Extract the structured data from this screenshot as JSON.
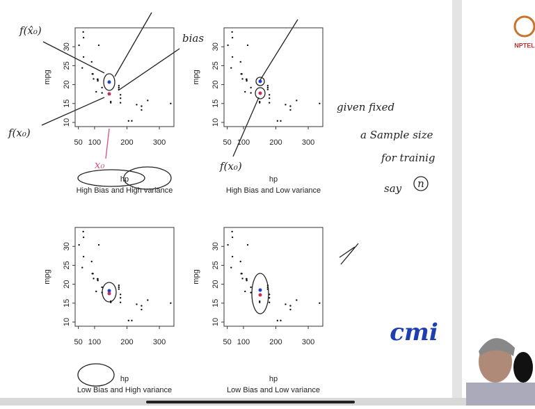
{
  "chart_data": [
    {
      "type": "scatter",
      "x_label": "hp",
      "y_label": "mpg",
      "subtitle": "High Bias and High variance",
      "x": [
        110,
        110,
        93,
        110,
        175,
        105,
        245,
        62,
        95,
        123,
        123,
        180,
        180,
        180,
        205,
        215,
        230,
        66,
        52,
        65,
        97,
        150,
        150,
        245,
        175,
        66,
        91,
        113,
        264,
        175,
        335,
        109
      ],
      "y": [
        21,
        21,
        22.8,
        21.4,
        18.7,
        18.1,
        14.3,
        24.4,
        22.8,
        19.2,
        17.8,
        16.4,
        17.3,
        15.2,
        10.4,
        10.4,
        14.7,
        32.4,
        30.4,
        33.9,
        21.5,
        15.5,
        15.2,
        13.3,
        19.2,
        27.3,
        26,
        30.4,
        15.8,
        19.7,
        15,
        21.4
      ],
      "color": "#111111",
      "xlim": [
        40,
        345
      ],
      "ylim": [
        8.9,
        35
      ],
      "xticks": [
        50,
        100,
        200,
        300
      ],
      "yticks": [
        10,
        15,
        20,
        25,
        30
      ]
    },
    {
      "type": "scatter",
      "x_label": "hp",
      "y_label": "mpg",
      "subtitle": "High Bias and Low variance",
      "x": [
        110,
        110,
        93,
        110,
        175,
        105,
        245,
        62,
        95,
        123,
        123,
        180,
        180,
        180,
        205,
        215,
        230,
        66,
        52,
        65,
        97,
        150,
        150,
        245,
        175,
        66,
        91,
        113,
        264,
        175,
        335,
        109
      ],
      "y": [
        21,
        21,
        22.8,
        21.4,
        18.7,
        18.1,
        14.3,
        24.4,
        22.8,
        19.2,
        17.8,
        16.4,
        17.3,
        15.2,
        10.4,
        10.4,
        14.7,
        32.4,
        30.4,
        33.9,
        21.5,
        15.5,
        15.2,
        13.3,
        19.2,
        27.3,
        26,
        30.4,
        15.8,
        19.7,
        15,
        21.4
      ],
      "color": "#111111",
      "xlim": [
        40,
        345
      ],
      "ylim": [
        8.9,
        35
      ],
      "xticks": [
        50,
        100,
        200,
        300
      ],
      "yticks": [
        10,
        15,
        20,
        25,
        30
      ]
    },
    {
      "type": "scatter",
      "x_label": "hp",
      "y_label": "mpg",
      "subtitle": "Low Bias and High variance",
      "x": [
        110,
        110,
        93,
        110,
        175,
        105,
        245,
        62,
        95,
        123,
        123,
        180,
        180,
        180,
        205,
        215,
        230,
        66,
        52,
        65,
        97,
        150,
        150,
        245,
        175,
        66,
        91,
        113,
        264,
        175,
        335,
        109
      ],
      "y": [
        21,
        21,
        22.8,
        21.4,
        18.7,
        18.1,
        14.3,
        24.4,
        22.8,
        19.2,
        17.8,
        16.4,
        17.3,
        15.2,
        10.4,
        10.4,
        14.7,
        32.4,
        30.4,
        33.9,
        21.5,
        15.5,
        15.2,
        13.3,
        19.2,
        27.3,
        26,
        30.4,
        15.8,
        19.7,
        15,
        21.4
      ],
      "color": "#111111",
      "xlim": [
        40,
        345
      ],
      "ylim": [
        8.9,
        35
      ],
      "xticks": [
        50,
        100,
        200,
        300
      ],
      "yticks": [
        10,
        15,
        20,
        25,
        30
      ]
    },
    {
      "type": "scatter",
      "x_label": "hp",
      "y_label": "mpg",
      "subtitle": "Low Bias and Low variance",
      "x": [
        110,
        110,
        93,
        110,
        175,
        105,
        245,
        62,
        95,
        123,
        123,
        180,
        180,
        180,
        205,
        215,
        230,
        66,
        52,
        65,
        97,
        150,
        150,
        245,
        175,
        66,
        91,
        113,
        264,
        175,
        335,
        109
      ],
      "y": [
        21,
        21,
        22.8,
        21.4,
        18.7,
        18.1,
        14.3,
        24.4,
        22.8,
        19.2,
        17.8,
        16.4,
        17.3,
        15.2,
        10.4,
        10.4,
        14.7,
        32.4,
        30.4,
        33.9,
        21.5,
        15.5,
        15.2,
        13.3,
        19.2,
        27.3,
        26,
        30.4,
        15.8,
        19.7,
        15,
        21.4
      ],
      "color": "#111111",
      "xlim": [
        40,
        345
      ],
      "ylim": [
        8.9,
        35
      ],
      "xticks": [
        50,
        100,
        200,
        300
      ],
      "yticks": [
        10,
        15,
        20,
        25,
        30
      ]
    }
  ],
  "annotations": {
    "f_hat": "f(x̂₀)",
    "f_x0": "f(x₀)",
    "bias": "bias",
    "x0": "x₀",
    "f_x0_b": "f(x₀)",
    "note": [
      "given fixed",
      "a Sample size",
      "for trainig",
      "say",
      "n"
    ]
  },
  "logos": {
    "nptel": "NPTEL",
    "cmi": "cmi"
  }
}
